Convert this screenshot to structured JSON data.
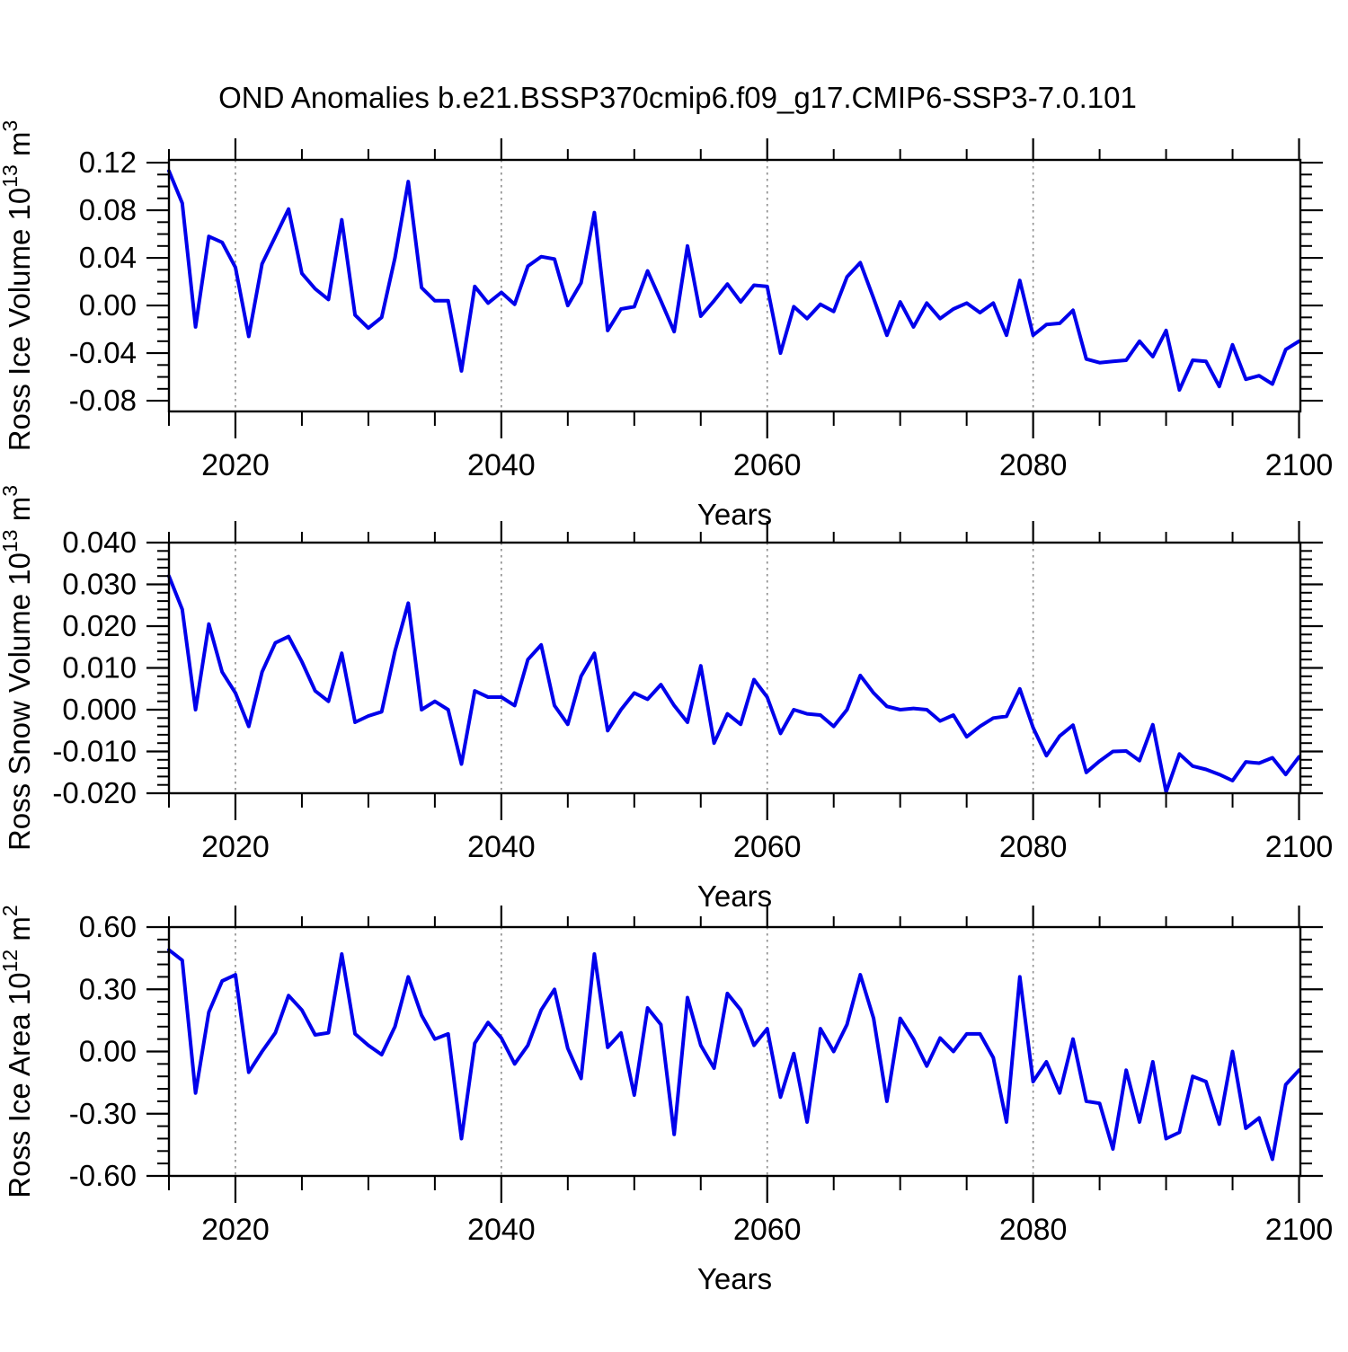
{
  "title": "OND Anomalies b.e21.BSSP370cmip6.f09_g17.CMIP6-SSP3-7.0.101",
  "chart_data": {
    "type": "line",
    "title": "OND Anomalies b.e21.BSSP370cmip6.f09_g17.CMIP6-SSP3-7.0.101",
    "xlabel": "Years",
    "legend_position": "none",
    "grid_on": "dashed vertical lines at major x ticks",
    "line_color": "#0000EB",
    "grid_color": "#8c8c8c",
    "frame_color": "#000000",
    "xlim": [
      2015,
      2100.1
    ],
    "x_ticks": [
      2020,
      2040,
      2060,
      2080,
      2100
    ],
    "x_tick_labels": [
      "2020",
      "2040",
      "2060",
      "2080",
      "2100"
    ],
    "x_minor_step": 5,
    "grid_years": [
      2020,
      2040,
      2060,
      2080
    ],
    "x_years": [
      2015,
      2016,
      2017,
      2018,
      2019,
      2020,
      2021,
      2022,
      2023,
      2024,
      2025,
      2026,
      2027,
      2028,
      2029,
      2030,
      2031,
      2032,
      2033,
      2034,
      2035,
      2036,
      2037,
      2038,
      2039,
      2040,
      2041,
      2042,
      2043,
      2044,
      2045,
      2046,
      2047,
      2048,
      2049,
      2050,
      2051,
      2052,
      2053,
      2054,
      2055,
      2056,
      2057,
      2058,
      2059,
      2060,
      2061,
      2062,
      2063,
      2064,
      2065,
      2066,
      2067,
      2068,
      2069,
      2070,
      2071,
      2072,
      2073,
      2074,
      2075,
      2076,
      2077,
      2078,
      2079,
      2080,
      2081,
      2082,
      2083,
      2084,
      2085,
      2086,
      2087,
      2088,
      2089,
      2090,
      2091,
      2092,
      2093,
      2094,
      2095,
      2096,
      2097,
      2098,
      2099,
      2100
    ],
    "panels": [
      {
        "name": "ross-ice-volume",
        "ylabel": "Ross Ice Volume 10^13 m^3",
        "ylabel_parts": [
          {
            "t": "Ross Ice Volume 10"
          },
          {
            "t": "13",
            "sup": true
          },
          {
            "t": " m"
          },
          {
            "t": "3",
            "sup": true
          }
        ],
        "ylim": [
          -0.089,
          0.1223
        ],
        "yticks": [
          0.12,
          0.08,
          0.04,
          0.0,
          -0.04,
          -0.08
        ],
        "ytick_labels": [
          "0.12",
          "0.08",
          "0.04",
          "0.00",
          "-0.04",
          "-0.08"
        ],
        "y_minor_step": 0.01,
        "values": [
          0.113,
          0.086,
          -0.018,
          0.058,
          0.053,
          0.032,
          -0.026,
          0.035,
          0.058,
          0.081,
          0.027,
          0.014,
          0.005,
          0.072,
          -0.008,
          -0.019,
          -0.01,
          0.04,
          0.104,
          0.015,
          0.004,
          0.004,
          -0.055,
          0.016,
          0.002,
          0.011,
          0.001,
          0.033,
          0.041,
          0.039,
          0.0,
          0.019,
          0.078,
          -0.021,
          -0.003,
          -0.001,
          0.029,
          0.004,
          -0.022,
          0.05,
          -0.009,
          0.004,
          0.018,
          0.003,
          0.017,
          0.016,
          -0.04,
          -0.001,
          -0.011,
          0.001,
          -0.005,
          0.024,
          0.036,
          0.006,
          -0.025,
          0.003,
          -0.018,
          0.002,
          -0.011,
          -0.003,
          0.002,
          -0.006,
          0.002,
          -0.025,
          0.021,
          -0.025,
          -0.016,
          -0.015,
          -0.004,
          -0.045,
          -0.048,
          -0.047,
          -0.046,
          -0.03,
          -0.043,
          -0.021,
          -0.071,
          -0.046,
          -0.047,
          -0.068,
          -0.033,
          -0.062,
          -0.059,
          -0.066,
          -0.037,
          -0.03
        ]
      },
      {
        "name": "ross-snow-volume",
        "ylabel": "Ross Snow Volume 10^13 m^3",
        "ylabel_parts": [
          {
            "t": "Ross Snow Volume 10"
          },
          {
            "t": "13",
            "sup": true
          },
          {
            "t": " m"
          },
          {
            "t": "3",
            "sup": true
          }
        ],
        "ylim": [
          -0.02,
          0.04
        ],
        "yticks": [
          0.04,
          0.03,
          0.02,
          0.01,
          0.0,
          -0.01,
          -0.02
        ],
        "ytick_labels": [
          "0.040",
          "0.030",
          "0.020",
          "0.010",
          "0.000",
          "-0.010",
          "-0.020"
        ],
        "y_minor_step": 0.002,
        "values": [
          0.032,
          0.024,
          0.0,
          0.0205,
          0.009,
          0.004,
          -0.004,
          0.009,
          0.016,
          0.0175,
          0.0115,
          0.0045,
          0.002,
          0.0135,
          -0.003,
          -0.0015,
          -0.0005,
          0.014,
          0.0255,
          0.0,
          0.002,
          0.0,
          -0.013,
          0.0045,
          0.003,
          0.003,
          0.001,
          0.012,
          0.0155,
          0.001,
          -0.0035,
          0.008,
          0.0135,
          -0.005,
          0.0,
          0.004,
          0.0025,
          0.006,
          0.001,
          -0.003,
          0.0105,
          -0.008,
          -0.001,
          -0.0035,
          0.0072,
          0.003,
          -0.0057,
          0.0,
          -0.001,
          -0.0013,
          -0.004,
          0.0,
          0.0082,
          0.004,
          0.0008,
          0.0,
          0.0003,
          0.0,
          -0.0027,
          -0.0013,
          -0.0065,
          -0.004,
          -0.002,
          -0.0016,
          0.005,
          -0.0043,
          -0.011,
          -0.0063,
          -0.0037,
          -0.015,
          -0.0123,
          -0.01,
          -0.0099,
          -0.0122,
          -0.0036,
          -0.0197,
          -0.0106,
          -0.0135,
          -0.0143,
          -0.0155,
          -0.017,
          -0.0125,
          -0.0128,
          -0.0115,
          -0.0155,
          -0.0113
        ]
      },
      {
        "name": "ross-ice-area",
        "ylabel": "Ross Ice Area 10^12 m^2",
        "ylabel_parts": [
          {
            "t": "Ross Ice Area 10"
          },
          {
            "t": "12",
            "sup": true
          },
          {
            "t": " m"
          },
          {
            "t": "2",
            "sup": true
          }
        ],
        "ylim": [
          -0.6,
          0.6
        ],
        "yticks": [
          0.6,
          0.3,
          0.0,
          -0.3,
          -0.6
        ],
        "ytick_labels": [
          "0.60",
          "0.30",
          "0.00",
          "-0.30",
          "-0.60"
        ],
        "y_minor_step": 0.06,
        "values": [
          0.49,
          0.44,
          -0.2,
          0.19,
          0.34,
          0.37,
          -0.1,
          0.0,
          0.09,
          0.27,
          0.2,
          0.08,
          0.09,
          0.47,
          0.085,
          0.03,
          -0.015,
          0.12,
          0.36,
          0.175,
          0.06,
          0.085,
          -0.42,
          0.04,
          0.14,
          0.065,
          -0.06,
          0.03,
          0.2,
          0.3,
          0.015,
          -0.13,
          0.47,
          0.02,
          0.09,
          -0.21,
          0.21,
          0.13,
          -0.4,
          0.26,
          0.03,
          -0.08,
          0.28,
          0.2,
          0.03,
          0.11,
          -0.22,
          -0.01,
          -0.34,
          0.11,
          0.0,
          0.13,
          0.37,
          0.16,
          -0.24,
          0.16,
          0.06,
          -0.07,
          0.065,
          0.0,
          0.085,
          0.085,
          -0.03,
          -0.34,
          0.36,
          -0.145,
          -0.05,
          -0.2,
          0.06,
          -0.24,
          -0.25,
          -0.47,
          -0.09,
          -0.34,
          -0.05,
          -0.42,
          -0.39,
          -0.12,
          -0.145,
          -0.35,
          0.0,
          -0.37,
          -0.32,
          -0.52,
          -0.16,
          -0.09
        ]
      }
    ]
  }
}
